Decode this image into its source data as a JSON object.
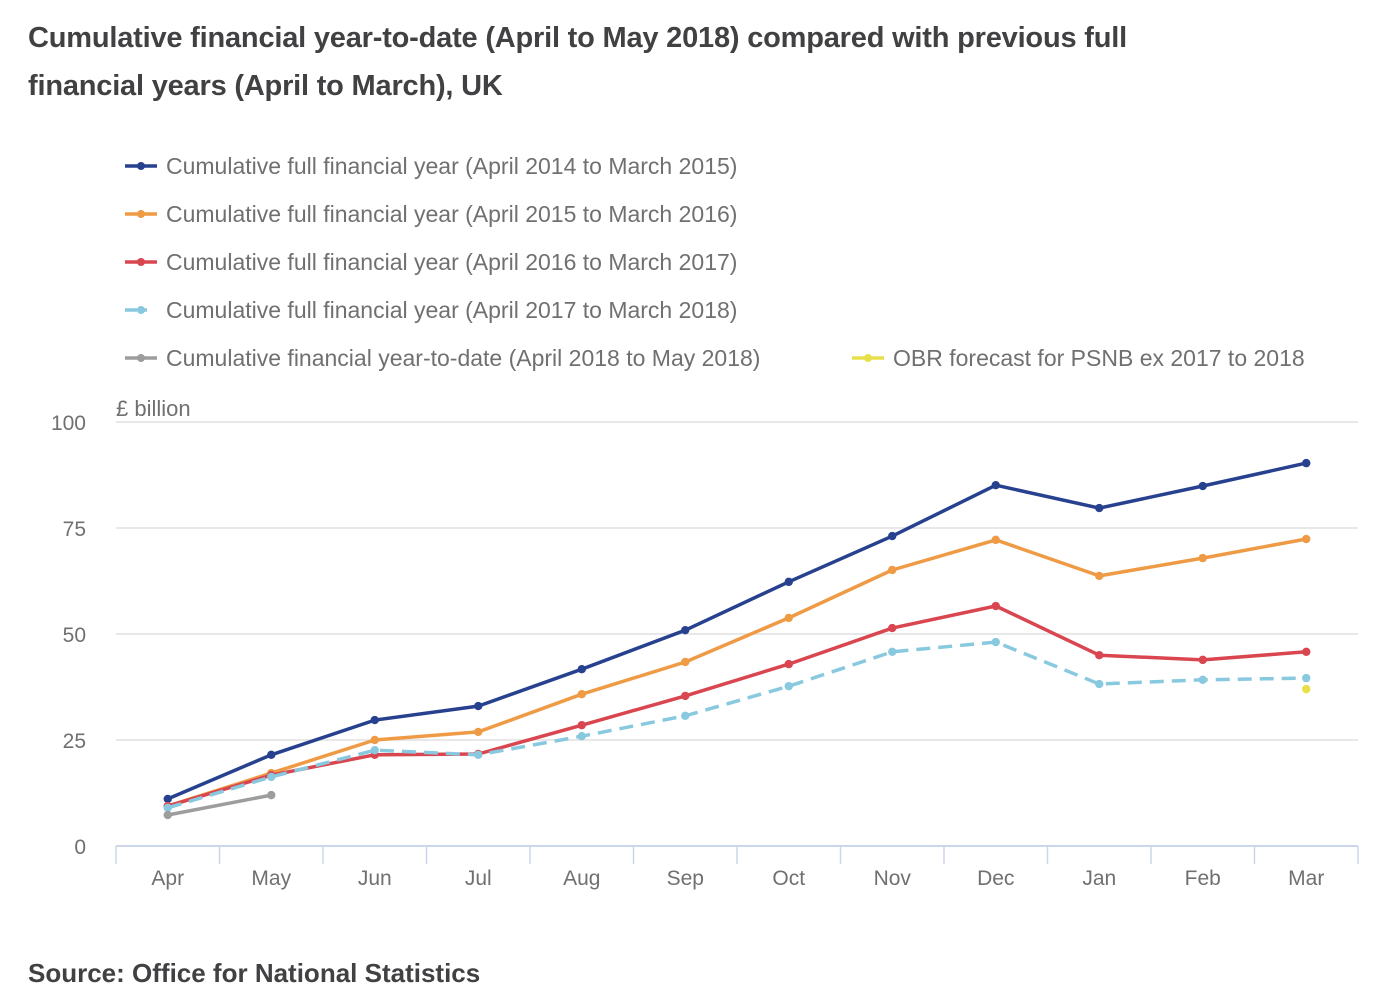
{
  "title": "Cumulative financial year-to-date (April to May 2018) compared with previous full financial years (April to March), UK",
  "source": "Source: Office for National Statistics",
  "chart_data": {
    "type": "line",
    "title": "Cumulative financial year-to-date (April to May 2018) compared with previous full financial years (April to March), UK",
    "xlabel": "",
    "ylabel": "£ billion",
    "categories": [
      "Apr",
      "May",
      "Jun",
      "Jul",
      "Aug",
      "Sep",
      "Oct",
      "Nov",
      "Dec",
      "Jan",
      "Feb",
      "Mar"
    ],
    "ylim": [
      0,
      100
    ],
    "yticks": [
      0,
      25,
      50,
      75,
      100
    ],
    "grid": true,
    "legend_position": "top",
    "series": [
      {
        "name": "Cumulative full financial year (April 2014 to March 2015)",
        "color": "#27418f",
        "dashed": false,
        "values": [
          11.1,
          21.5,
          29.7,
          33.0,
          41.7,
          50.9,
          62.3,
          73.1,
          85.1,
          79.7,
          84.9,
          90.3
        ]
      },
      {
        "name": "Cumulative full financial year (April 2015 to March 2016)",
        "color": "#ef9a45",
        "dashed": false,
        "values": [
          9.4,
          17.2,
          25.0,
          26.9,
          35.8,
          43.4,
          53.8,
          65.1,
          72.2,
          63.7,
          67.9,
          72.4
        ]
      },
      {
        "name": "Cumulative full financial year (April 2016 to March 2017)",
        "color": "#d9464f",
        "dashed": false,
        "values": [
          9.4,
          16.7,
          21.5,
          21.7,
          28.5,
          35.4,
          42.9,
          51.4,
          56.6,
          45.0,
          43.9,
          45.8
        ]
      },
      {
        "name": "Cumulative full financial year (April 2017 to March 2018)",
        "color": "#88c9df",
        "dashed": true,
        "values": [
          9.0,
          16.3,
          22.6,
          21.5,
          25.9,
          30.7,
          37.7,
          45.8,
          48.1,
          38.2,
          39.2,
          39.6
        ]
      },
      {
        "name": "Cumulative financial year-to-date (April 2018 to May 2018)",
        "color": "#9d9d9d",
        "dashed": false,
        "values": [
          7.3,
          12.0,
          null,
          null,
          null,
          null,
          null,
          null,
          null,
          null,
          null,
          null
        ]
      },
      {
        "name": "OBR forecast for PSNB ex 2017 to 2018",
        "color": "#e8e04a",
        "dashed": false,
        "values": [
          null,
          null,
          null,
          null,
          null,
          null,
          null,
          null,
          null,
          null,
          null,
          37.0
        ]
      }
    ]
  }
}
